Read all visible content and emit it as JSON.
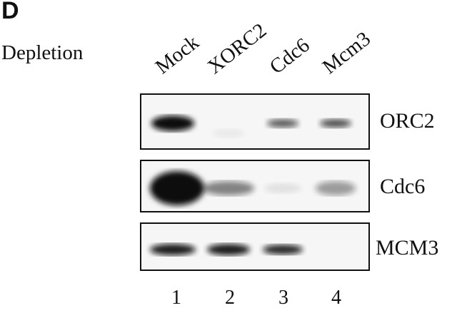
{
  "figure": {
    "panel_letter": "D",
    "row_label": "Depletion",
    "lanes": [
      {
        "label": "Mock",
        "number": "1"
      },
      {
        "label": "XORC2",
        "number": "2"
      },
      {
        "label": "Cdc6",
        "number": "3"
      },
      {
        "label": "Mcm3",
        "number": "4"
      }
    ],
    "blots": [
      {
        "protein": "ORC2",
        "band_intensity": [
          1.0,
          0.05,
          0.6,
          0.65
        ]
      },
      {
        "protein": "Cdc6",
        "band_intensity": [
          1.0,
          0.45,
          0.08,
          0.35
        ]
      },
      {
        "protein": "MCM3",
        "band_intensity": [
          0.85,
          0.85,
          0.8,
          0.0
        ]
      }
    ]
  }
}
